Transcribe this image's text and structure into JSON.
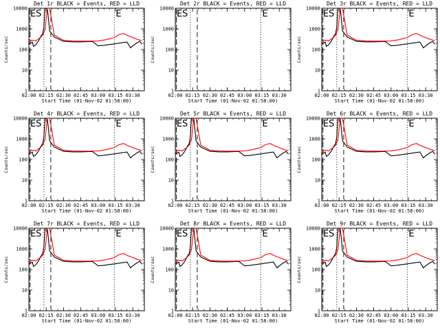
{
  "chart_data": {
    "type": "line",
    "xlabel": "Start Time (01-Nov-02 01:58:00)",
    "ylabel": "Counts/sec",
    "x_ticklabels": [
      "02:00",
      "02:15",
      "02:30",
      "02:45",
      "03:00",
      "03:15",
      "03:30"
    ],
    "y_ticklabels": [
      "1",
      "10",
      "100",
      "1000",
      "10000"
    ],
    "ylim": [
      1,
      10000
    ],
    "yscale": "log",
    "xlim": [
      "02:00",
      "03:40"
    ],
    "colors": {
      "events": "#000000",
      "lld": "#ff0000"
    },
    "panels": [
      {
        "title": "Det 1r BLACK = Events, RED = LLD",
        "has_data": true,
        "markers": [
          "E",
          "S",
          "E"
        ]
      },
      {
        "title": "Det 2r BLACK = Events, RED = LLD",
        "has_data": false,
        "markers": [
          "E",
          "S",
          "E"
        ]
      },
      {
        "title": "Det 3r BLACK = Events, RED = LLD",
        "has_data": true,
        "markers": [
          "E",
          "S",
          "E"
        ]
      },
      {
        "title": "Det 4r BLACK = Events, RED = LLD",
        "has_data": true,
        "markers": [
          "E",
          "S",
          "E"
        ]
      },
      {
        "title": "Det 5r BLACK = Events, RED = LLD",
        "has_data": true,
        "markers": [
          "E",
          "S",
          "E"
        ]
      },
      {
        "title": "Det 6r BLACK = Events, RED = LLD",
        "has_data": true,
        "markers": [
          "E",
          "S",
          "E"
        ]
      },
      {
        "title": "Det 7r BLACK = Events, RED = LLD",
        "has_data": true,
        "markers": [
          "E",
          "S",
          "E"
        ]
      },
      {
        "title": "Det 8r BLACK = Events, RED = LLD",
        "has_data": true,
        "markers": [
          "E",
          "S",
          "E"
        ]
      },
      {
        "title": "Det 9r BLACK = Events, RED = LLD",
        "has_data": true,
        "markers": [
          "E",
          "S",
          "E"
        ]
      }
    ],
    "series": [
      {
        "name": "Events",
        "x": [
          "02:00",
          "02:03",
          "02:04",
          "02:06",
          "02:08",
          "02:09",
          "02:10",
          "02:12",
          "02:13",
          "02:14",
          "02:16",
          "02:18",
          "02:22",
          "02:30",
          "02:38",
          "02:45",
          "02:50",
          "02:55",
          "03:00",
          "03:05",
          "03:10",
          "03:15",
          "03:20",
          "03:25",
          "03:28",
          "03:30",
          "03:33",
          "03:36",
          "03:38"
        ],
        "y": [
          180,
          230,
          140,
          170,
          240,
          300,
          400,
          600,
          1200,
          10000,
          10000,
          800,
          400,
          250,
          235,
          235,
          240,
          245,
          150,
          160,
          175,
          190,
          210,
          230,
          120,
          150,
          200,
          250,
          180
        ]
      },
      {
        "name": "LLD",
        "x": [
          "02:00",
          "02:02",
          "02:04",
          "02:06",
          "02:08",
          "02:10",
          "02:12",
          "02:14",
          "02:16",
          "02:18",
          "02:22",
          "02:30",
          "02:38",
          "02:45",
          "02:52",
          "03:00",
          "03:07",
          "03:14",
          "03:18",
          "03:22",
          "03:26",
          "03:30",
          "03:34",
          "03:38"
        ],
        "y": [
          190,
          280,
          280,
          260,
          320,
          380,
          500,
          900,
          10000,
          10000,
          500,
          280,
          260,
          255,
          255,
          260,
          300,
          380,
          520,
          600,
          460,
          380,
          310,
          270
        ]
      }
    ],
    "vlines": [
      {
        "x": "02:01",
        "style": "dashed"
      },
      {
        "x": "02:13",
        "style": "dotted"
      },
      {
        "x": "02:19",
        "style": "dashed"
      },
      {
        "x": "03:14",
        "style": "dotted"
      }
    ]
  }
}
